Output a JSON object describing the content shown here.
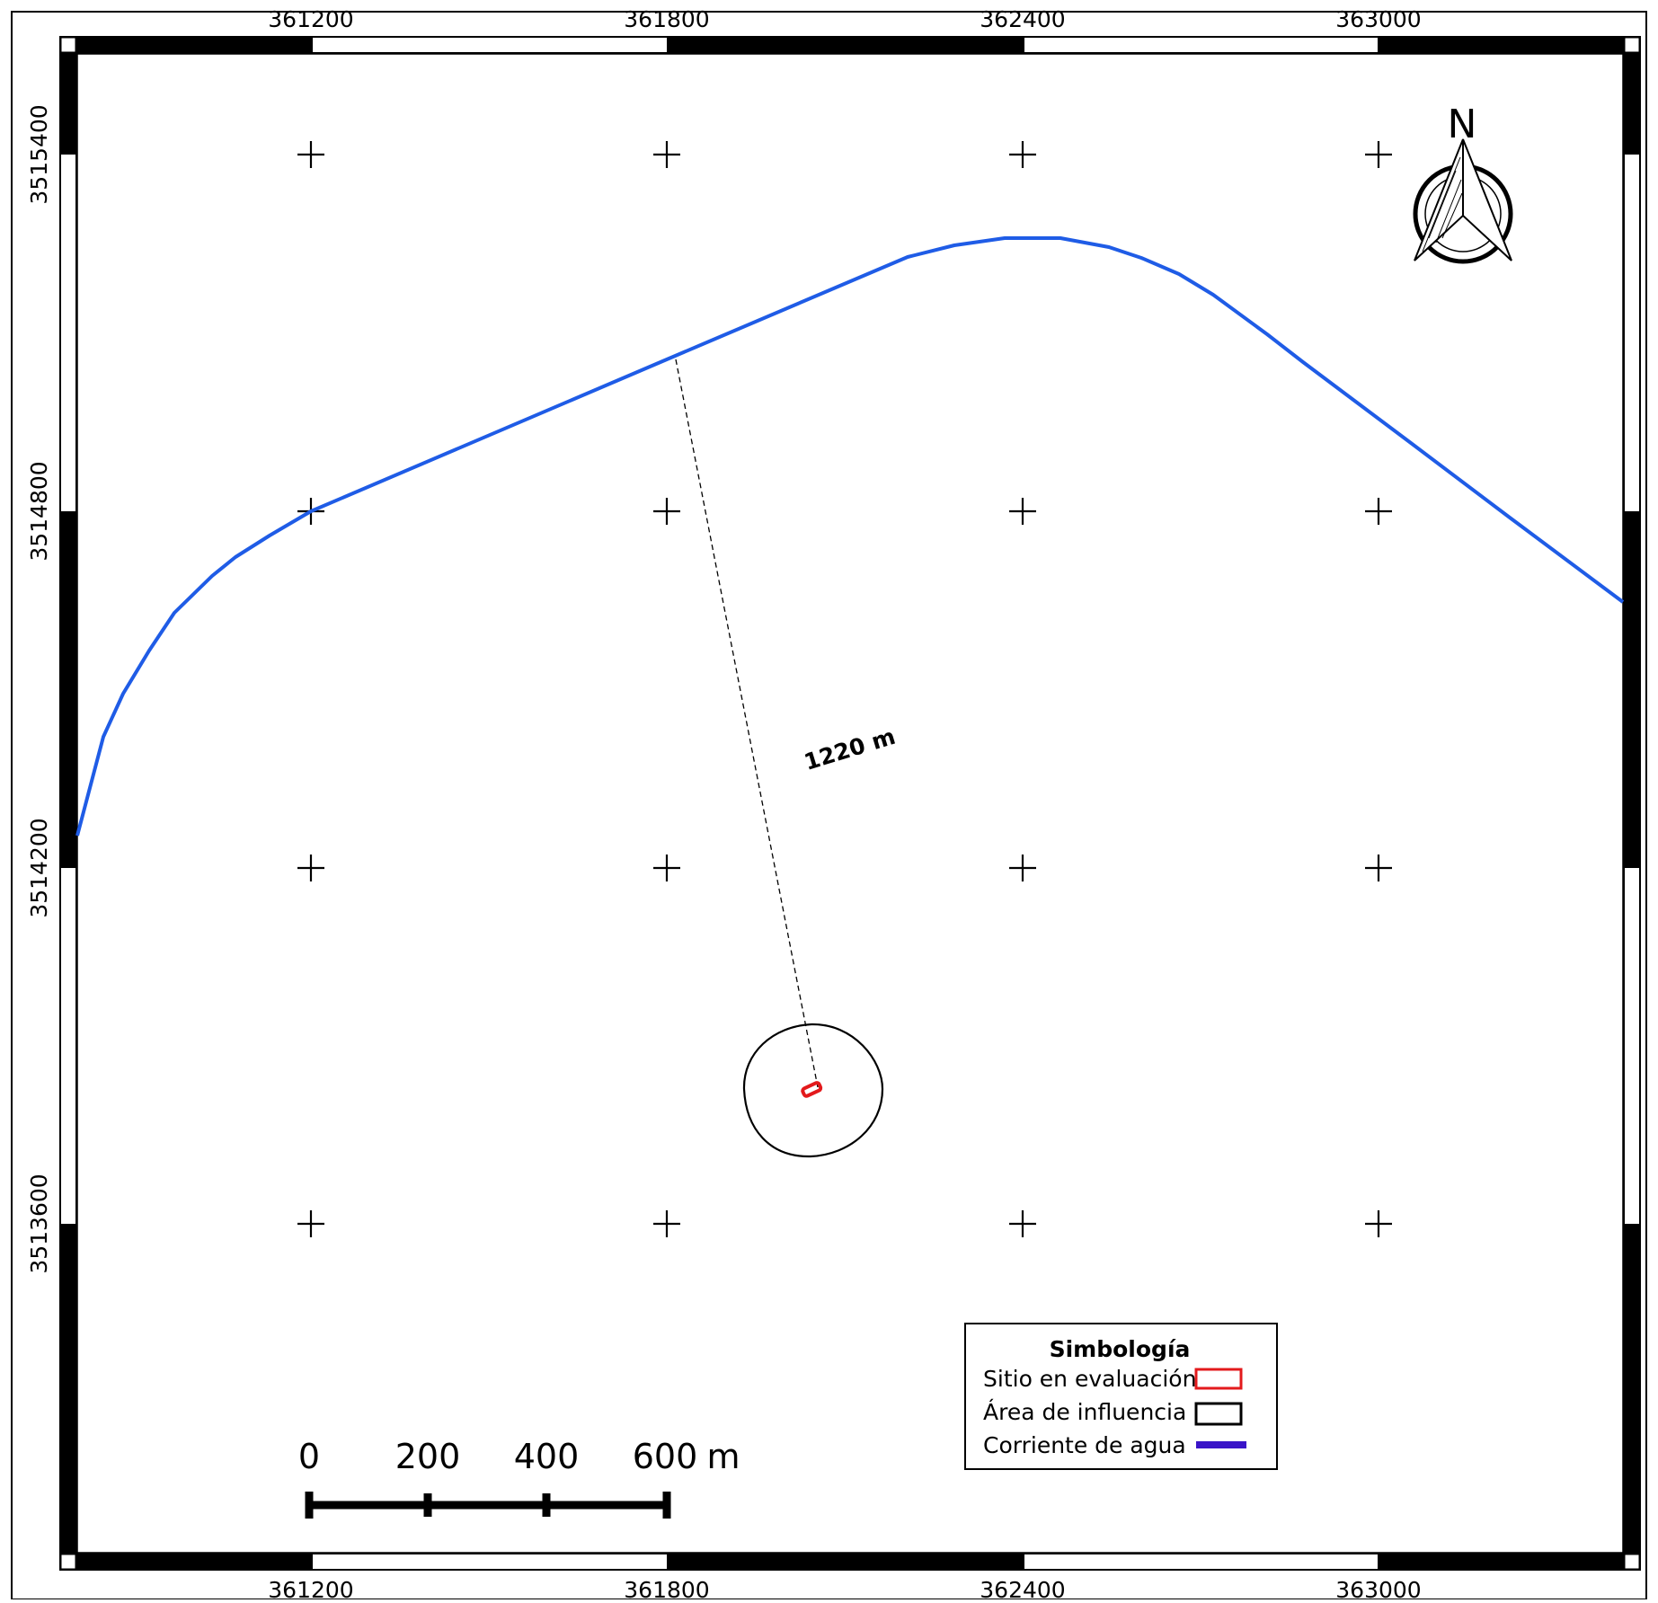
{
  "map": {
    "x_ticks": [
      "361200",
      "361800",
      "362400",
      "363000"
    ],
    "y_ticks": [
      "3515400",
      "3514800",
      "3514200",
      "3513600"
    ],
    "north_label": "N",
    "distance_label": "1220 m",
    "scale_bar": {
      "labels": [
        "0",
        "200",
        "400",
        "600",
        "m"
      ],
      "unit": "m"
    },
    "legend": {
      "title": "Simbología",
      "items": [
        {
          "label": "Sitio en evaluación",
          "symbol": "red-outline-rectangle",
          "color": "#e31a1c"
        },
        {
          "label": "Área de influencia",
          "symbol": "black-outline-rectangle",
          "color": "#000000"
        },
        {
          "label": "Corriente de agua",
          "symbol": "blue-line",
          "color": "#3a14c8"
        }
      ]
    },
    "colors": {
      "stream": "#1f5ce6",
      "site": "#e31a1c",
      "influence_area": "#000000",
      "frame": "#000000"
    }
  }
}
